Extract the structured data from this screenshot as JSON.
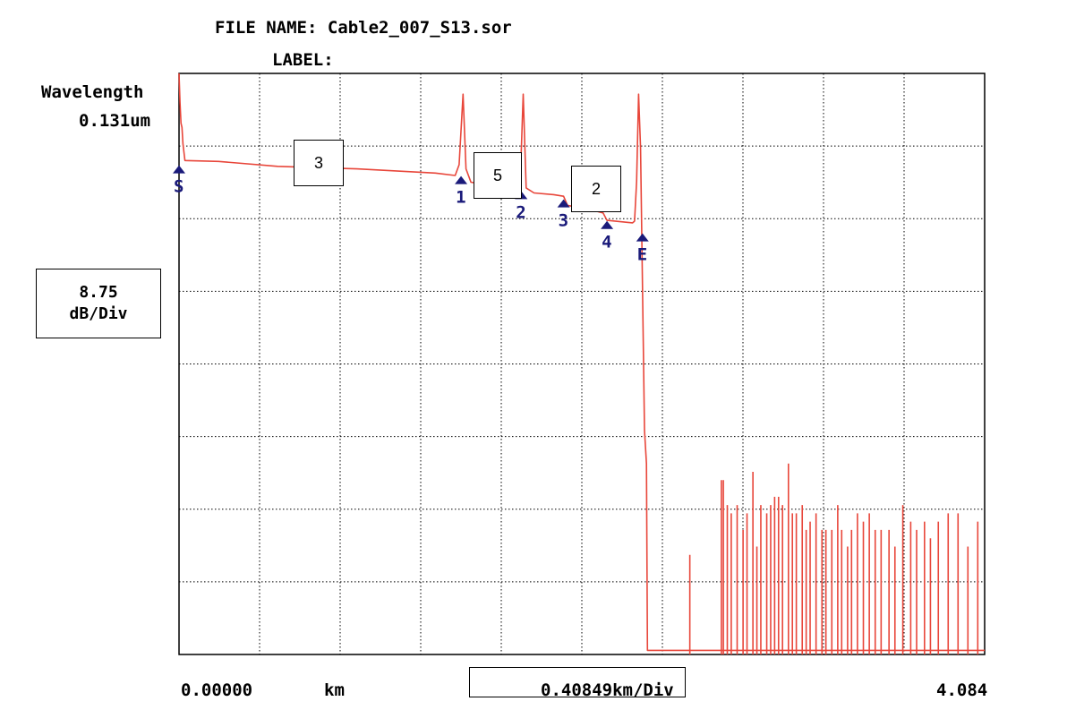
{
  "header": {
    "file_name": "FILE NAME: Cable2_007_S13.sor",
    "label": "LABEL:",
    "wavelength_title": "Wavelength",
    "wavelength_value": "0.131um"
  },
  "vertical_scale": {
    "value": "8.75",
    "unit": "dB/Div"
  },
  "footer": {
    "start": "0.00000",
    "unit": "km",
    "horizontal_scale": "0.40849km/Div",
    "end": "4.084"
  },
  "segment_labels": [
    "3",
    "5",
    "2"
  ],
  "colors": {
    "trace": "#e8463a",
    "marker": "#1a1a7a",
    "grid": "#000000"
  },
  "chart_data": {
    "type": "line",
    "title": "FILE NAME: Cable2_007_S13.sor",
    "xlabel": "km",
    "ylabel": "dB",
    "xlim": [
      0,
      4.0849
    ],
    "ylim": [
      -70,
      0
    ],
    "x_divisions": 10,
    "y_divisions": 8,
    "y_per_div_db": 8.75,
    "x_per_div_km": 0.40849,
    "grid": true,
    "series": [
      {
        "points": [
          [
            0.0,
            0.0
          ],
          [
            0.005,
            -3.5
          ],
          [
            0.01,
            -6.0
          ],
          [
            0.015,
            -6.5
          ],
          [
            0.02,
            -8.5
          ],
          [
            0.03,
            -10.5
          ],
          [
            0.2,
            -10.6
          ],
          [
            0.5,
            -11.2
          ],
          [
            0.9,
            -11.5
          ],
          [
            1.3,
            -12.0
          ],
          [
            1.4,
            -12.3
          ],
          [
            1.42,
            -11.0
          ],
          [
            1.44,
            -2.5
          ],
          [
            1.455,
            -11.5
          ],
          [
            1.48,
            -13.1
          ],
          [
            1.6,
            -13.6
          ],
          [
            1.7,
            -14.1
          ],
          [
            1.72,
            -14.3
          ],
          [
            1.73,
            -13.0
          ],
          [
            1.745,
            -2.5
          ],
          [
            1.76,
            -13.8
          ],
          [
            1.8,
            -14.4
          ],
          [
            1.9,
            -14.6
          ],
          [
            1.95,
            -14.8
          ],
          [
            1.97,
            -15.9
          ],
          [
            2.1,
            -16.5
          ],
          [
            2.15,
            -16.8
          ],
          [
            2.17,
            -17.7
          ],
          [
            2.3,
            -18.0
          ],
          [
            2.31,
            -17.8
          ],
          [
            2.32,
            -13.0
          ],
          [
            2.33,
            -2.5
          ],
          [
            2.34,
            -9.0
          ],
          [
            2.36,
            -43.0
          ],
          [
            2.37,
            -47.0
          ],
          [
            2.375,
            -69.5
          ],
          [
            4.0849,
            -69.5
          ]
        ]
      }
    ],
    "noise_spikes": [
      [
        2.59,
        -58.0
      ],
      [
        2.75,
        -49.0
      ],
      [
        2.76,
        -49.0
      ],
      [
        2.78,
        -52.0
      ],
      [
        2.8,
        -53.0
      ],
      [
        2.83,
        -52.0
      ],
      [
        2.86,
        -55.0
      ],
      [
        2.88,
        -53.0
      ],
      [
        2.91,
        -48.0
      ],
      [
        2.93,
        -57.0
      ],
      [
        2.95,
        -52.0
      ],
      [
        2.98,
        -53.0
      ],
      [
        3.0,
        -52.0
      ],
      [
        3.02,
        -51.0
      ],
      [
        3.04,
        -51.0
      ],
      [
        3.06,
        -52.0
      ],
      [
        3.09,
        -47.0
      ],
      [
        3.11,
        -53.0
      ],
      [
        3.13,
        -53.0
      ],
      [
        3.16,
        -52.0
      ],
      [
        3.18,
        -55.0
      ],
      [
        3.2,
        -54.0
      ],
      [
        3.23,
        -53.0
      ],
      [
        3.26,
        -55.0
      ],
      [
        3.28,
        -55.0
      ],
      [
        3.31,
        -55.0
      ],
      [
        3.34,
        -52.0
      ],
      [
        3.36,
        -55.0
      ],
      [
        3.39,
        -57.0
      ],
      [
        3.41,
        -55.0
      ],
      [
        3.44,
        -53.0
      ],
      [
        3.47,
        -54.0
      ],
      [
        3.5,
        -53.0
      ],
      [
        3.53,
        -55.0
      ],
      [
        3.56,
        -55.0
      ],
      [
        3.6,
        -55.0
      ],
      [
        3.63,
        -57.0
      ],
      [
        3.67,
        -52.0
      ],
      [
        3.71,
        -54.0
      ],
      [
        3.74,
        -55.0
      ],
      [
        3.78,
        -54.0
      ],
      [
        3.81,
        -56.0
      ],
      [
        3.85,
        -54.0
      ],
      [
        3.9,
        -53.0
      ],
      [
        3.95,
        -53.0
      ],
      [
        4.0,
        -57.0
      ],
      [
        4.05,
        -54.0
      ]
    ],
    "markers": [
      {
        "label": "S",
        "x": 0.0,
        "y": -11.5
      },
      {
        "label": "1",
        "x": 1.43,
        "y": -12.8
      },
      {
        "label": "2",
        "x": 1.735,
        "y": -14.6
      },
      {
        "label": "3",
        "x": 1.95,
        "y": -15.6
      },
      {
        "label": "4",
        "x": 2.17,
        "y": -18.2
      },
      {
        "label": "E",
        "x": 2.35,
        "y": -19.7
      }
    ]
  }
}
